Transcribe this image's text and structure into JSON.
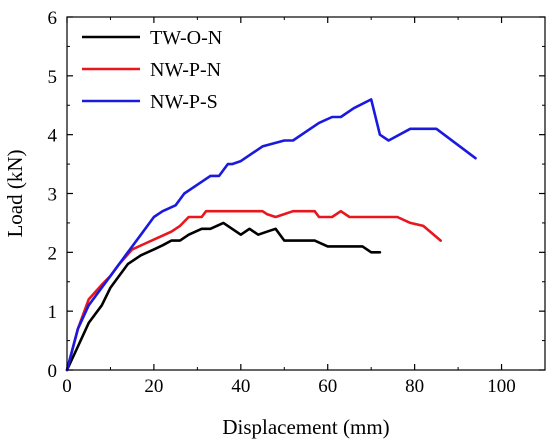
{
  "chart_data": {
    "type": "line",
    "title": "",
    "xlabel": "Displacement (mm)",
    "ylabel": "Load (kN)",
    "xlim": [
      0,
      110
    ],
    "ylim": [
      0,
      6
    ],
    "xticks": [
      0,
      20,
      40,
      60,
      80,
      100
    ],
    "yticks": [
      0,
      1,
      2,
      3,
      4,
      5,
      6
    ],
    "grid": false,
    "legend_position": "top-left",
    "series": [
      {
        "name": "TW-O-N",
        "color": "#000000",
        "x": [
          0,
          2.5,
          5,
          8,
          10,
          14,
          17,
          20,
          22,
          24,
          26,
          28,
          31,
          33,
          36,
          38,
          40,
          42,
          44,
          46,
          48,
          50,
          53,
          57,
          60,
          64,
          68,
          70,
          72
        ],
        "y": [
          0,
          0.4,
          0.8,
          1.1,
          1.4,
          1.8,
          1.95,
          2.05,
          2.12,
          2.2,
          2.2,
          2.3,
          2.4,
          2.4,
          2.5,
          2.4,
          2.3,
          2.4,
          2.3,
          2.35,
          2.4,
          2.2,
          2.2,
          2.2,
          2.1,
          2.1,
          2.1,
          2.0,
          2.0
        ]
      },
      {
        "name": "NW-P-N",
        "color": "#e8161d",
        "x": [
          0,
          2.5,
          5,
          8,
          10,
          12,
          15,
          18,
          21,
          24,
          26,
          28,
          31,
          32,
          35,
          40,
          45,
          46,
          48,
          50,
          52,
          54,
          57,
          58,
          61,
          63,
          65,
          70,
          76,
          79,
          82,
          86
        ],
        "y": [
          0,
          0.7,
          1.2,
          1.45,
          1.6,
          1.8,
          2.05,
          2.15,
          2.25,
          2.35,
          2.45,
          2.6,
          2.6,
          2.7,
          2.7,
          2.7,
          2.7,
          2.65,
          2.6,
          2.65,
          2.7,
          2.7,
          2.7,
          2.6,
          2.6,
          2.7,
          2.6,
          2.6,
          2.6,
          2.5,
          2.45,
          2.2
        ]
      },
      {
        "name": "NW-P-S",
        "color": "#1a1adf",
        "x": [
          0,
          2.5,
          5,
          8,
          10,
          14,
          17,
          20,
          22,
          25,
          27,
          30,
          33,
          35,
          37,
          38,
          40,
          45,
          50,
          52,
          55,
          58,
          61,
          63,
          66,
          70,
          72,
          74,
          79,
          81,
          85,
          94
        ],
        "y": [
          0,
          0.7,
          1.1,
          1.4,
          1.6,
          2.0,
          2.3,
          2.6,
          2.7,
          2.8,
          3.0,
          3.15,
          3.3,
          3.3,
          3.5,
          3.5,
          3.55,
          3.8,
          3.9,
          3.9,
          4.05,
          4.2,
          4.3,
          4.3,
          4.45,
          4.6,
          4.0,
          3.9,
          4.1,
          4.1,
          4.1,
          3.6
        ]
      }
    ]
  }
}
